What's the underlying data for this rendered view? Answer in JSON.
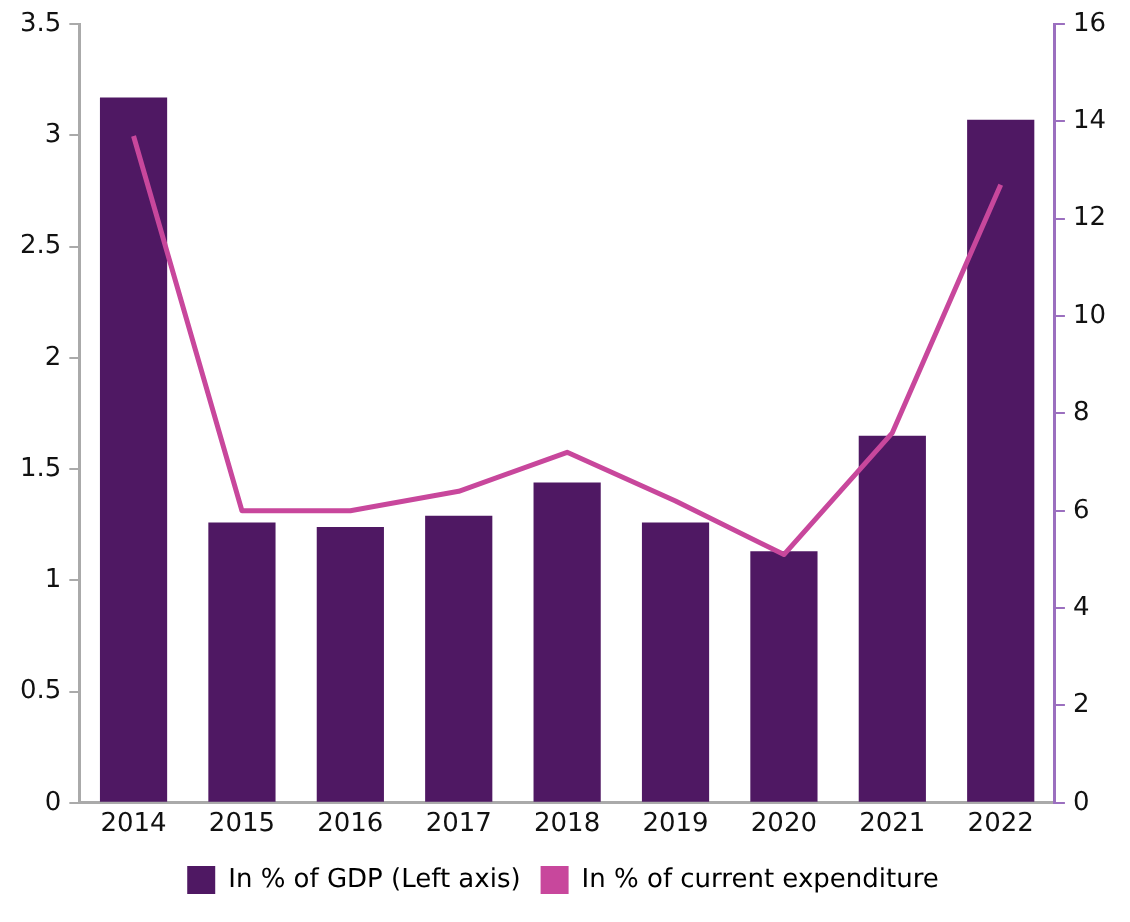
{
  "chart_data": {
    "type": "bar",
    "categories": [
      "2014",
      "2015",
      "2016",
      "2017",
      "2018",
      "2019",
      "2020",
      "2021",
      "2022"
    ],
    "series": [
      {
        "name": "In % of GDP (Left axis)",
        "color": "#4f1863",
        "values": [
          3.17,
          1.26,
          1.24,
          1.29,
          1.44,
          1.26,
          1.13,
          1.65,
          3.07
        ]
      },
      {
        "name": "In % of current expenditure",
        "type": "line",
        "axis": "y2",
        "color": "#c8479c",
        "values": [
          13.7,
          6.0,
          6.0,
          6.4,
          7.2,
          6.2,
          5.1,
          7.6,
          12.7
        ]
      }
    ],
    "ylim": [
      0,
      3.5
    ],
    "yticks": [
      0,
      0.5,
      1,
      1.5,
      2,
      2.5,
      3,
      3.5
    ],
    "y2lim": [
      0,
      16
    ],
    "y2ticks": [
      0,
      2,
      4,
      6,
      8,
      10,
      12,
      14,
      16
    ],
    "grid": false,
    "legend": "bottom",
    "marker": "none"
  }
}
